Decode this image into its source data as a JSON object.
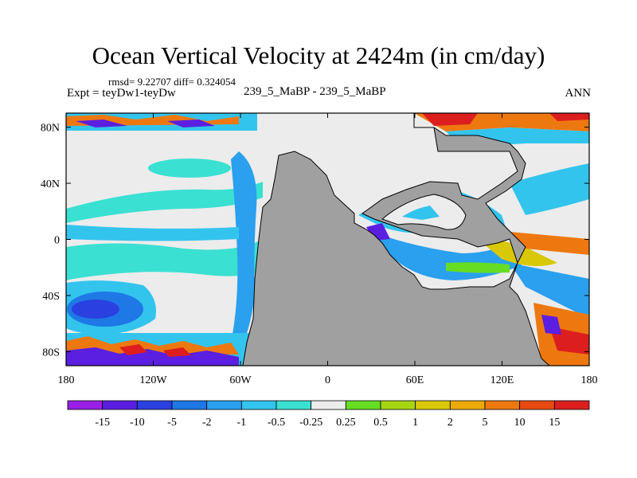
{
  "chart_data": {
    "type": "heatmap",
    "title": "Ocean Vertical Velocity at 2424m (in cm/day)",
    "stats": "rmsd= 9.22707 diff= 0.324054",
    "left_label": "Expt = teyDw1-teyDw",
    "center_label": "239_5_MaBP - 239_5_MaBP",
    "right_label": "ANN",
    "xlim": [
      -180,
      180
    ],
    "ylim": [
      -90,
      90
    ],
    "x_ticks": [
      {
        "value": -180,
        "label": "180"
      },
      {
        "value": -120,
        "label": "120W"
      },
      {
        "value": -60,
        "label": "60W"
      },
      {
        "value": 0,
        "label": "0"
      },
      {
        "value": 60,
        "label": "60E"
      },
      {
        "value": 120,
        "label": "120E"
      },
      {
        "value": 180,
        "label": "180"
      }
    ],
    "y_ticks": [
      {
        "value": 80,
        "label": "80N"
      },
      {
        "value": 40,
        "label": "40N"
      },
      {
        "value": 0,
        "label": "0"
      },
      {
        "value": -40,
        "label": "40S"
      },
      {
        "value": -80,
        "label": "80S"
      }
    ],
    "colorbar": {
      "levels": [
        "-15",
        "-10",
        "-5",
        "-2",
        "-1",
        "-0.5",
        "-0.25",
        "0.25",
        "0.5",
        "1",
        "2",
        "5",
        "10",
        "15"
      ],
      "colors": [
        "#9a1fe6",
        "#5a1fe0",
        "#2a40e0",
        "#1e78e6",
        "#2aa0ee",
        "#33c4ee",
        "#3ae0d2",
        "#ececec",
        "#66dd22",
        "#a6d610",
        "#d8c808",
        "#ecaa0a",
        "#ee7810",
        "#e84a10",
        "#dd1e1e"
      ]
    },
    "regions": [
      {
        "name": "pangaea",
        "value_class": "land",
        "color": "#a0a0a0"
      },
      {
        "name": "pacific-near-zero",
        "value_class": "-0.25..0.25",
        "color": "#ececec"
      },
      {
        "name": "pacific-southern-low",
        "value_class": "-5..-2",
        "color": "#1e78e6"
      },
      {
        "name": "polar-high-lat-ring",
        "value_class": "mixed -15..15"
      }
    ]
  }
}
